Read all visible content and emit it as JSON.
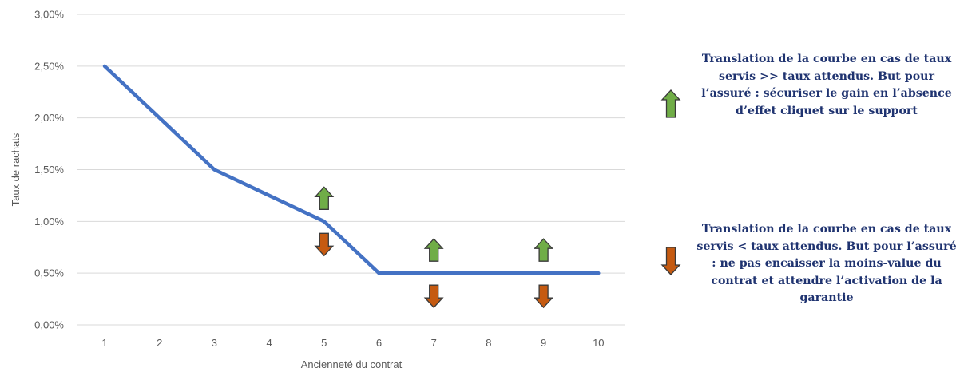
{
  "chart_data": {
    "type": "line",
    "title": "",
    "xlabel": "Ancienneté du contrat",
    "ylabel": "Taux de rachats",
    "x": [
      1,
      2,
      3,
      4,
      5,
      6,
      7,
      8,
      9,
      10
    ],
    "xlim": [
      1,
      10
    ],
    "ylim": [
      0,
      0.03
    ],
    "yticks": [
      "0,00%",
      "0,50%",
      "1,00%",
      "1,50%",
      "2,00%",
      "2,50%",
      "3,00%"
    ],
    "ytick_values": [
      0,
      0.005,
      0.01,
      0.015,
      0.02,
      0.025,
      0.03
    ],
    "grid": true,
    "series": [
      {
        "values": [
          0.025,
          0.02,
          0.015,
          0.0125,
          0.01,
          0.005,
          0.005,
          0.005,
          0.005,
          0.005
        ],
        "color": "#4472c4"
      }
    ],
    "annotations": [
      {
        "type": "arrow-up",
        "x": 5,
        "color": "#70ad47"
      },
      {
        "type": "arrow-down",
        "x": 5,
        "color": "#c55a11"
      },
      {
        "type": "arrow-up",
        "x": 7,
        "color": "#70ad47"
      },
      {
        "type": "arrow-down",
        "x": 7,
        "color": "#c55a11"
      },
      {
        "type": "arrow-up",
        "x": 9,
        "color": "#70ad47"
      },
      {
        "type": "arrow-down",
        "x": 9,
        "color": "#c55a11"
      }
    ]
  },
  "legend": {
    "up": {
      "color": "#70ad47",
      "text": "Translation de la courbe en cas de taux servis >> taux attendus. But pour l’assuré : sécuriser le gain en l’absence d’effet cliquet sur le support"
    },
    "down": {
      "color": "#c55a11",
      "text": "Translation de la courbe en cas de taux servis < taux attendus. But pour l’assuré : ne pas encaisser la moins-value du contrat et attendre l’activation de la garantie"
    }
  },
  "colors": {
    "grid": "#d9d9d9",
    "ticks": "#595959",
    "note_text": "#1f3370"
  }
}
